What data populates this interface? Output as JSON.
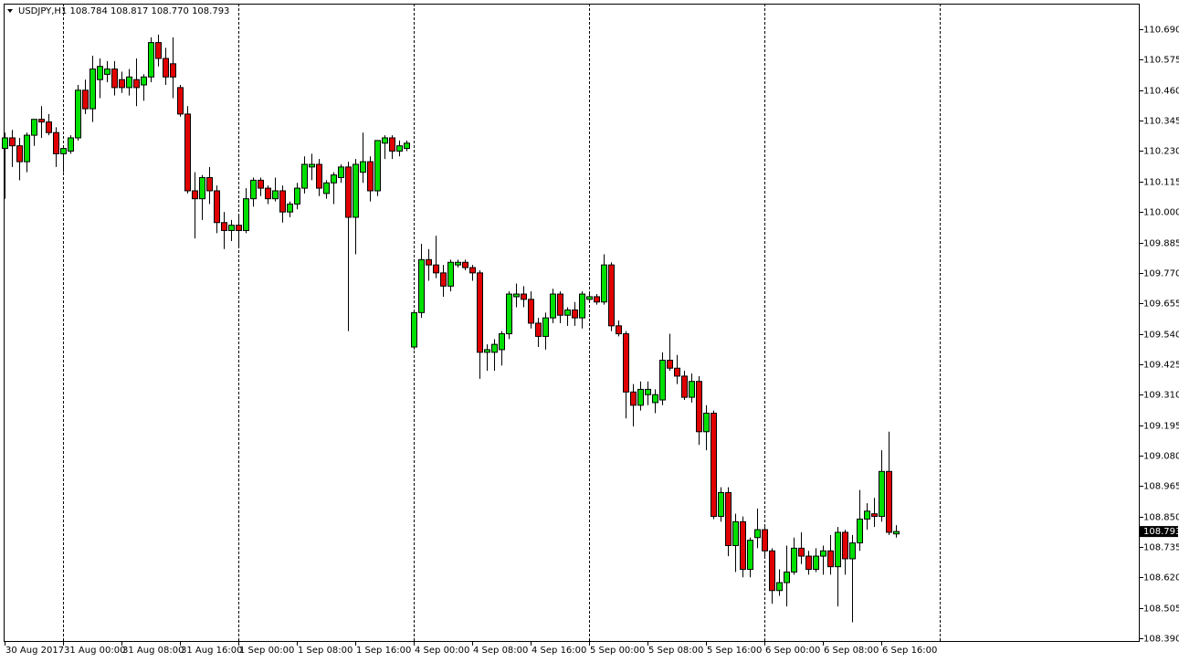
{
  "chart_data": {
    "type": "candlestick",
    "title": "USDJPY,H1  108.784 108.817 108.770 108.793",
    "up_color": "#00e000",
    "down_color": "#e00000",
    "ylim": [
      108.376,
      110.787
    ],
    "yticks": [
      {
        "value": 110.69,
        "label": "110.690"
      },
      110.575,
      {
        "value": 110.46,
        "label": "110.460"
      },
      110.345,
      {
        "value": 110.23,
        "label": "110.230"
      },
      110.115,
      {
        "value": 110.0,
        "label": "110.000"
      },
      109.885,
      {
        "value": 109.77,
        "label": "109.770"
      },
      109.655,
      {
        "value": 109.54,
        "label": "109.540"
      },
      109.425,
      {
        "value": 109.31,
        "label": "109.310"
      },
      109.195,
      {
        "value": 109.08,
        "label": "109.080"
      },
      108.965,
      {
        "value": 108.85,
        "label": "108.850"
      },
      108.735,
      {
        "value": 108.62,
        "label": "108.620"
      },
      108.505,
      {
        "value": 108.39,
        "label": "108.390"
      }
    ],
    "last_price": 108.793,
    "categories": [
      "30 Aug 2017",
      null,
      null,
      null,
      null,
      null,
      null,
      null,
      "31 Aug 00:00",
      null,
      null,
      null,
      null,
      null,
      null,
      null,
      "31 Aug 08:00",
      null,
      null,
      null,
      null,
      null,
      null,
      null,
      "31 Aug 16:00",
      null,
      null,
      null,
      null,
      null,
      null,
      null,
      "1 Sep 00:00",
      null,
      null,
      null,
      null,
      null,
      null,
      null,
      "1 Sep 08:00",
      null,
      null,
      null,
      null,
      null,
      null,
      null,
      "1 Sep 16:00",
      null,
      null,
      null,
      null,
      null,
      null,
      null,
      "4 Sep 00:00",
      null,
      null,
      null,
      null,
      null,
      null,
      null,
      "4 Sep 08:00",
      null,
      null,
      null,
      null,
      null,
      null,
      null,
      "4 Sep 16:00",
      null,
      null,
      null,
      null,
      null,
      null,
      null,
      "5 Sep 00:00",
      null,
      null,
      null,
      null,
      null,
      null,
      null,
      "5 Sep 08:00",
      null,
      null,
      null,
      null,
      null,
      null,
      null,
      "5 Sep 16:00",
      null,
      null,
      null,
      null,
      null,
      null,
      null,
      "6 Sep 00:00",
      null,
      null,
      null,
      null,
      null,
      null,
      null,
      "6 Sep 08:00",
      null,
      null,
      null,
      null,
      null,
      null,
      null,
      "6 Sep 16:00",
      null,
      null
    ],
    "open": [
      110.24,
      110.28,
      110.25,
      110.19,
      110.29,
      110.35,
      110.34,
      110.3,
      110.22,
      110.23,
      110.28,
      110.46,
      110.39,
      110.5,
      110.52,
      110.54,
      110.5,
      110.47,
      110.5,
      110.48,
      110.51,
      110.64,
      110.58,
      110.56,
      110.47,
      110.37,
      110.08,
      110.05,
      110.13,
      110.08,
      109.96,
      109.93,
      109.95,
      109.93,
      110.05,
      110.12,
      110.09,
      110.05,
      110.08,
      110.0,
      110.03,
      110.09,
      110.17,
      110.18,
      110.07,
      110.11,
      110.13,
      110.17,
      109.98,
      110.15,
      110.19,
      110.08,
      110.26,
      110.28,
      110.23,
      110.24,
      109.49,
      109.62,
      109.82,
      109.8,
      109.77,
      109.72,
      109.8,
      109.81,
      109.79,
      109.77,
      109.47,
      109.47,
      109.48,
      109.54,
      109.68,
      109.69,
      109.67,
      109.58,
      109.53,
      109.6,
      109.69,
      109.61,
      109.63,
      109.6,
      109.67,
      109.68,
      109.66,
      109.8,
      109.57,
      109.54,
      109.32,
      109.27,
      109.31,
      109.28,
      109.29,
      109.44,
      109.41,
      109.38,
      109.3,
      109.36,
      109.17,
      109.24,
      108.85,
      108.94,
      108.74,
      108.83,
      108.65,
      108.77,
      108.8,
      108.72,
      108.57,
      108.6,
      108.64,
      108.73,
      108.7,
      108.65,
      108.7,
      108.72,
      108.66,
      108.79,
      108.69,
      108.75,
      108.84,
      108.86,
      108.85,
      109.02,
      108.784
    ],
    "high": [
      110.3,
      110.31,
      110.28,
      110.3,
      110.35,
      110.4,
      110.37,
      110.32,
      110.24,
      110.29,
      110.48,
      110.5,
      110.59,
      110.58,
      110.57,
      110.57,
      110.53,
      110.54,
      110.58,
      110.52,
      110.66,
      110.67,
      110.62,
      110.66,
      110.48,
      110.4,
      110.15,
      110.14,
      110.17,
      110.1,
      110.0,
      109.97,
      109.99,
      110.09,
      110.13,
      110.13,
      110.1,
      110.13,
      110.1,
      110.04,
      110.11,
      110.21,
      110.22,
      110.2,
      110.12,
      110.15,
      110.18,
      110.19,
      110.2,
      110.3,
      110.21,
      110.27,
      110.29,
      110.29,
      110.27,
      110.27,
      109.63,
      109.88,
      109.86,
      109.91,
      109.8,
      109.82,
      109.82,
      109.82,
      109.8,
      109.78,
      109.5,
      109.52,
      109.55,
      109.7,
      109.73,
      109.72,
      109.7,
      109.6,
      109.62,
      109.71,
      109.7,
      109.64,
      109.66,
      109.7,
      109.69,
      109.69,
      109.84,
      109.81,
      109.59,
      109.55,
      109.35,
      109.36,
      109.36,
      109.33,
      109.47,
      109.54,
      109.46,
      109.4,
      109.39,
      109.38,
      109.27,
      109.25,
      108.96,
      108.96,
      108.86,
      108.85,
      108.77,
      108.88,
      108.81,
      108.73,
      108.65,
      108.74,
      108.77,
      108.79,
      108.72,
      108.73,
      108.74,
      108.78,
      108.81,
      108.8,
      108.78,
      108.95,
      108.9,
      108.92,
      109.1,
      109.17,
      108.817
    ],
    "low": [
      110.05,
      110.17,
      110.12,
      110.15,
      110.25,
      110.28,
      110.29,
      110.17,
      110.15,
      110.22,
      110.27,
      110.37,
      110.34,
      110.43,
      110.49,
      110.44,
      110.45,
      110.44,
      110.4,
      110.42,
      110.49,
      110.55,
      110.48,
      110.43,
      110.36,
      110.07,
      109.9,
      109.97,
      110.03,
      109.92,
      109.86,
      109.89,
      109.87,
      109.92,
      110.02,
      110.06,
      110.03,
      110.04,
      109.96,
      109.98,
      110.01,
      110.07,
      110.12,
      110.06,
      110.05,
      110.03,
      110.11,
      109.55,
      109.84,
      110.11,
      110.04,
      110.06,
      110.2,
      110.2,
      110.21,
      110.23,
      109.48,
      109.6,
      109.74,
      109.75,
      109.68,
      109.7,
      109.79,
      109.78,
      109.74,
      109.37,
      109.4,
      109.4,
      109.42,
      109.52,
      109.64,
      109.64,
      109.56,
      109.49,
      109.48,
      109.58,
      109.58,
      109.57,
      109.57,
      109.56,
      109.66,
      109.65,
      109.65,
      109.55,
      109.53,
      109.22,
      109.19,
      109.25,
      109.27,
      109.24,
      109.27,
      109.4,
      109.35,
      109.29,
      109.28,
      109.12,
      109.1,
      108.84,
      108.83,
      108.7,
      108.64,
      108.62,
      108.62,
      108.73,
      108.69,
      108.52,
      108.55,
      108.51,
      108.63,
      108.67,
      108.63,
      108.64,
      108.63,
      108.63,
      108.51,
      108.63,
      108.45,
      108.72,
      108.8,
      108.81,
      108.83,
      108.78,
      108.77
    ],
    "close": [
      110.28,
      110.25,
      110.19,
      110.29,
      110.35,
      110.34,
      110.3,
      110.22,
      110.24,
      110.28,
      110.46,
      110.39,
      110.54,
      110.55,
      110.54,
      110.47,
      110.47,
      110.51,
      110.47,
      110.51,
      110.64,
      110.58,
      110.51,
      110.51,
      110.37,
      110.08,
      110.05,
      110.13,
      110.08,
      109.96,
      109.93,
      109.95,
      109.93,
      110.05,
      110.12,
      110.09,
      110.05,
      110.08,
      110.0,
      110.03,
      110.09,
      110.18,
      110.18,
      110.09,
      110.11,
      110.14,
      110.17,
      109.98,
      110.18,
      110.19,
      110.08,
      110.27,
      110.28,
      110.23,
      110.25,
      110.26,
      109.62,
      109.82,
      109.8,
      109.77,
      109.72,
      109.81,
      109.81,
      109.79,
      109.77,
      109.47,
      109.48,
      109.5,
      109.54,
      109.69,
      109.69,
      109.67,
      109.58,
      109.53,
      109.6,
      109.69,
      109.61,
      109.63,
      109.6,
      109.69,
      109.68,
      109.66,
      109.8,
      109.57,
      109.54,
      109.32,
      109.27,
      109.33,
      109.33,
      109.31,
      109.44,
      109.41,
      109.38,
      109.3,
      109.36,
      109.17,
      109.24,
      108.85,
      108.94,
      108.74,
      108.83,
      108.65,
      108.76,
      108.8,
      108.72,
      108.57,
      108.6,
      108.64,
      108.73,
      108.7,
      108.65,
      108.7,
      108.72,
      108.66,
      108.79,
      108.69,
      108.75,
      108.84,
      108.87,
      108.85,
      109.02,
      108.79,
      108.793
    ]
  }
}
